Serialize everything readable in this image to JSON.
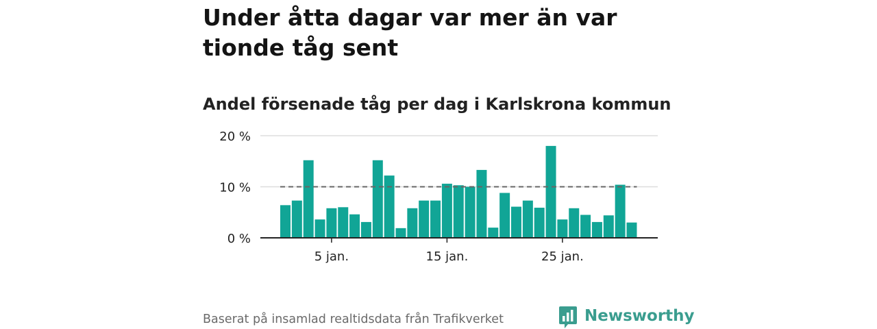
{
  "headline": "Under åtta dagar var mer än var tionde tåg sent",
  "subtitle": "Andel försenade tåg per dag i Karlskrona kommun",
  "footer": "Baserat på insamlad realtidsdata från Trafikverket",
  "brand": "Newsworthy",
  "colors": {
    "bar": "#11a596",
    "reference": "#666666",
    "grid": "#dddddd",
    "axis": "#222222",
    "brand": "#3a9d8f"
  },
  "chart_data": {
    "type": "bar",
    "x_unit": "day of January",
    "x": [
      1,
      2,
      3,
      4,
      5,
      6,
      7,
      8,
      9,
      10,
      11,
      12,
      13,
      14,
      15,
      16,
      17,
      18,
      19,
      20,
      21,
      22,
      23,
      24,
      25,
      26,
      27,
      28,
      29,
      30,
      31
    ],
    "values": [
      6.4,
      7.3,
      15.2,
      3.6,
      5.8,
      6.0,
      4.6,
      3.1,
      15.2,
      12.2,
      1.9,
      5.8,
      7.3,
      7.3,
      10.6,
      10.3,
      10.0,
      13.3,
      2.0,
      8.8,
      6.1,
      7.3,
      5.9,
      18.0,
      3.6,
      5.8,
      4.5,
      3.1,
      4.4,
      10.4,
      3.0
    ],
    "reference_line": 10,
    "ylim": [
      0,
      20
    ],
    "y_ticks": [
      0,
      10,
      20
    ],
    "y_tick_labels": [
      "0 %",
      "10 %",
      "20 %"
    ],
    "x_ticks": [
      5,
      15,
      25
    ],
    "x_tick_labels": [
      "5 jan.",
      "15 jan.",
      "25 jan."
    ],
    "grid": true
  }
}
